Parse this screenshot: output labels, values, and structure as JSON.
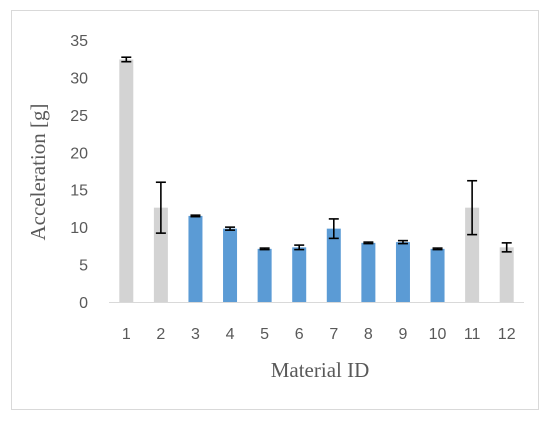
{
  "chart_data": {
    "type": "bar",
    "title": "",
    "xlabel": "Material ID",
    "ylabel": "Acceleration [g]",
    "ylim": [
      0,
      35
    ],
    "yticks": [
      0,
      5,
      10,
      15,
      20,
      25,
      30,
      35
    ],
    "grid": false,
    "legend": "none",
    "categories": [
      "1",
      "2",
      "3",
      "4",
      "5",
      "6",
      "7",
      "8",
      "9",
      "10",
      "11",
      "12"
    ],
    "values": [
      32.4,
      12.6,
      11.5,
      9.8,
      7.1,
      7.3,
      9.8,
      7.9,
      8.0,
      7.1,
      12.6,
      7.3
    ],
    "errors": [
      0.3,
      3.4,
      0.1,
      0.2,
      0.1,
      0.3,
      1.3,
      0.1,
      0.2,
      0.1,
      3.6,
      0.6
    ],
    "bar_colors": [
      "#d3d3d3",
      "#d3d3d3",
      "#5b9bd5",
      "#5b9bd5",
      "#5b9bd5",
      "#5b9bd5",
      "#5b9bd5",
      "#5b9bd5",
      "#5b9bd5",
      "#5b9bd5",
      "#d3d3d3",
      "#d3d3d3"
    ]
  }
}
